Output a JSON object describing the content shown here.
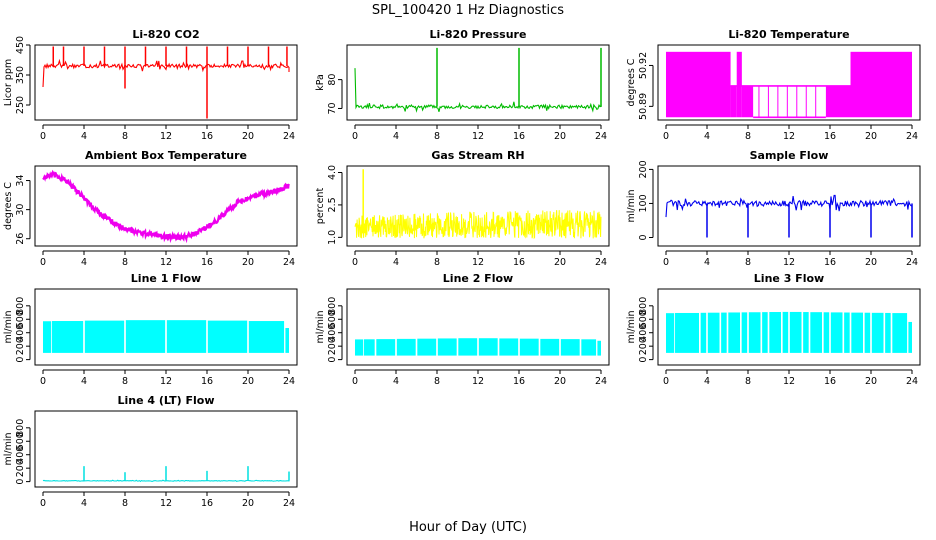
{
  "figure": {
    "title": "SPL_100420  1 Hz Diagnostics",
    "xlabel": "Hour of Day (UTC)"
  },
  "chart_data": [
    {
      "id": "co2",
      "type": "line",
      "title": "Li-820 CO2",
      "ylabel": "Licor ppm",
      "color": "#ff0000",
      "xlim": [
        0,
        24
      ],
      "ylim": [
        200,
        450
      ],
      "xticks": [
        0,
        4,
        8,
        12,
        16,
        20,
        24
      ],
      "yticks": [
        250,
        350,
        450
      ],
      "style": "spiky",
      "data": {
        "baseline": 380,
        "noise": 6,
        "start": [
          0.0,
          310
        ],
        "spikes": [
          [
            1.0,
            445
          ],
          [
            2.0,
            445
          ],
          [
            4.0,
            445
          ],
          [
            6.0,
            445
          ],
          [
            8.0,
            305
          ],
          [
            8.0,
            445
          ],
          [
            10.0,
            445
          ],
          [
            12.0,
            445
          ],
          [
            14.0,
            445
          ],
          [
            16.0,
            205
          ],
          [
            16.0,
            445
          ],
          [
            18.0,
            445
          ],
          [
            20.0,
            445
          ],
          [
            22.0,
            445
          ],
          [
            23.8,
            445
          ]
        ],
        "end": [
          24.0,
          360
        ]
      }
    },
    {
      "id": "pressure",
      "type": "line",
      "title": "Li-820 Pressure",
      "ylabel": "kPa",
      "color": "#00bb00",
      "xlim": [
        0,
        24
      ],
      "ylim": [
        66,
        92
      ],
      "xticks": [
        0,
        4,
        8,
        12,
        16,
        20,
        24
      ],
      "yticks": [
        70,
        80
      ],
      "style": "spiky",
      "data": {
        "baseline": 70.6,
        "noise": 0.6,
        "start": [
          0.0,
          84
        ],
        "spikes": [
          [
            8.0,
            91
          ],
          [
            16.0,
            91
          ],
          [
            24.0,
            91
          ]
        ],
        "end": [
          24.0,
          70.5
        ]
      }
    },
    {
      "id": "licor_temp",
      "type": "area",
      "title": "Li-820 Temperature",
      "ylabel": "degrees C",
      "color": "#ff00ff",
      "xlim": [
        0,
        24
      ],
      "ylim": [
        50.88,
        50.935
      ],
      "xticks": [
        0,
        4,
        8,
        12,
        16,
        20,
        24
      ],
      "yticks": [
        50.89,
        50.92
      ],
      "yticks_label": [
        "50.89",
        "50.92"
      ],
      "style": "quantized",
      "data": {
        "low": 50.882,
        "high": 50.93,
        "mid": 50.905,
        "high_segments": [
          [
            0.0,
            6.3
          ],
          [
            6.9,
            7.4
          ],
          [
            18.0,
            24.0
          ]
        ],
        "mid_segments": [
          [
            6.3,
            6.9
          ],
          [
            7.4,
            8.5
          ],
          [
            15.6,
            18.0
          ]
        ],
        "low_segments": [
          [
            8.5,
            15.6
          ]
        ]
      }
    },
    {
      "id": "box_temp",
      "type": "line",
      "title": "Ambient Box Temperature",
      "ylabel": "degrees C",
      "color": "#ee00ee",
      "xlim": [
        0,
        24
      ],
      "ylim": [
        25,
        36
      ],
      "xticks": [
        0,
        4,
        8,
        12,
        16,
        20,
        24
      ],
      "yticks": [
        26,
        30,
        34
      ],
      "style": "curve",
      "data": {
        "noise": 0.7,
        "points": [
          [
            0,
            34.4
          ],
          [
            1,
            34.8
          ],
          [
            2,
            34.2
          ],
          [
            3,
            33.0
          ],
          [
            4,
            31.6
          ],
          [
            5,
            30.2
          ],
          [
            6,
            29.0
          ],
          [
            7,
            28.1
          ],
          [
            8,
            27.4
          ],
          [
            9,
            27.0
          ],
          [
            10,
            26.7
          ],
          [
            11,
            26.5
          ],
          [
            12,
            26.3
          ],
          [
            13,
            26.2
          ],
          [
            14,
            26.3
          ],
          [
            15,
            26.8
          ],
          [
            16,
            27.6
          ],
          [
            17,
            28.6
          ],
          [
            18,
            29.8
          ],
          [
            19,
            31.0
          ],
          [
            20,
            31.7
          ],
          [
            21,
            32.0
          ],
          [
            22,
            32.3
          ],
          [
            23,
            32.7
          ],
          [
            24,
            33.3
          ]
        ]
      }
    },
    {
      "id": "rh",
      "type": "line",
      "title": "Gas Stream RH",
      "ylabel": "percent",
      "color": "#ffff00",
      "xlim": [
        0,
        24
      ],
      "ylim": [
        0.6,
        4.3
      ],
      "xticks": [
        0,
        4,
        8,
        12,
        16,
        20,
        24
      ],
      "yticks": [
        1.0,
        2.5,
        4.0
      ],
      "yticks_label": [
        "1.0",
        "2.5",
        "4.0"
      ],
      "style": "band",
      "data": {
        "band_low": [
          [
            0,
            0.95
          ],
          [
            24,
            0.95
          ]
        ],
        "band_high": [
          [
            0,
            2.0
          ],
          [
            12,
            2.2
          ],
          [
            24,
            2.3
          ]
        ],
        "spikes": [
          [
            0.8,
            4.15
          ]
        ]
      }
    },
    {
      "id": "sample_flow",
      "type": "line",
      "title": "Sample Flow",
      "ylabel": "ml/min",
      "color": "#0000ee",
      "xlim": [
        0,
        24
      ],
      "ylim": [
        -25,
        210
      ],
      "xticks": [
        0,
        4,
        8,
        12,
        16,
        20,
        24
      ],
      "yticks": [
        0,
        100,
        200
      ],
      "style": "spiky",
      "data": {
        "baseline": 100,
        "noise": 8,
        "start": [
          0.0,
          60
        ],
        "spikes": [
          [
            4.0,
            0
          ],
          [
            8.0,
            0
          ],
          [
            12.0,
            0
          ],
          [
            16.0,
            0
          ],
          [
            20.0,
            0
          ],
          [
            24.0,
            0
          ]
        ],
        "end": [
          24.0,
          0
        ]
      }
    },
    {
      "id": "line1",
      "type": "area",
      "title": "Line 1 Flow",
      "ylabel": "ml/min",
      "color": "#00ffff",
      "xlim": [
        0,
        24
      ],
      "ylim": [
        -80,
        1050
      ],
      "xticks": [
        0,
        4,
        8,
        12,
        16,
        20,
        24
      ],
      "yticks": [
        0,
        200,
        400,
        600,
        800
      ],
      "style": "blocks",
      "data": {
        "low": 100,
        "high": 580,
        "high_trend": [
          [
            0,
            570
          ],
          [
            12,
            590
          ],
          [
            24,
            570
          ]
        ],
        "gaps": [
          0.8,
          4.0,
          8.0,
          12.0,
          16.0,
          20.0,
          23.6
        ],
        "end": [
          24.0,
          470
        ]
      }
    },
    {
      "id": "line2",
      "type": "area",
      "title": "Line 2 Flow",
      "ylabel": "ml/min",
      "color": "#00ffff",
      "xlim": [
        0,
        24
      ],
      "ylim": [
        -80,
        1050
      ],
      "xticks": [
        0,
        4,
        8,
        12,
        16,
        20,
        24
      ],
      "yticks": [
        0,
        200,
        400,
        600,
        800
      ],
      "style": "blocks",
      "data": {
        "low": 60,
        "high": 310,
        "high_trend": [
          [
            0,
            300
          ],
          [
            12,
            320
          ],
          [
            24,
            300
          ]
        ],
        "gaps": [
          0.8,
          2.0,
          4.0,
          6.0,
          8.0,
          10.0,
          12.0,
          14.0,
          16.0,
          18.0,
          20.0,
          22.0,
          23.6
        ],
        "end": [
          24.0,
          280
        ]
      }
    },
    {
      "id": "line3",
      "type": "area",
      "title": "Line 3 Flow",
      "ylabel": "ml/min",
      "color": "#00ffff",
      "xlim": [
        0,
        24
      ],
      "ylim": [
        -80,
        1050
      ],
      "xticks": [
        0,
        4,
        8,
        12,
        16,
        20,
        24
      ],
      "yticks": [
        0,
        200,
        400,
        600,
        800
      ],
      "style": "blocks",
      "data": {
        "low": 100,
        "high": 700,
        "high_trend": [
          [
            0,
            690
          ],
          [
            12,
            710
          ],
          [
            24,
            690
          ]
        ],
        "gaps": [
          0.8,
          3.3,
          4.0,
          5.3,
          6.0,
          7.3,
          8.0,
          9.3,
          10.0,
          11.3,
          12.0,
          13.3,
          14.0,
          15.3,
          16.0,
          17.3,
          18.0,
          19.3,
          20.0,
          21.3,
          22.0,
          23.6
        ],
        "end": [
          24.0,
          560
        ]
      }
    },
    {
      "id": "line4",
      "type": "line",
      "title": "Line 4 (LT) Flow",
      "ylabel": "ml/min",
      "color": "#00e0e0",
      "xlim": [
        0,
        24
      ],
      "ylim": [
        -80,
        1050
      ],
      "xticks": [
        0,
        4,
        8,
        12,
        16,
        20,
        24
      ],
      "yticks": [
        0,
        200,
        400,
        600,
        800
      ],
      "style": "spiky",
      "data": {
        "baseline": 12,
        "noise": 3,
        "start": [
          0.0,
          12
        ],
        "spikes": [
          [
            4.0,
            230
          ],
          [
            8.0,
            140
          ],
          [
            12.0,
            230
          ],
          [
            16.0,
            160
          ],
          [
            20.0,
            230
          ],
          [
            24.0,
            150
          ]
        ],
        "end": [
          24.0,
          12
        ]
      }
    }
  ]
}
